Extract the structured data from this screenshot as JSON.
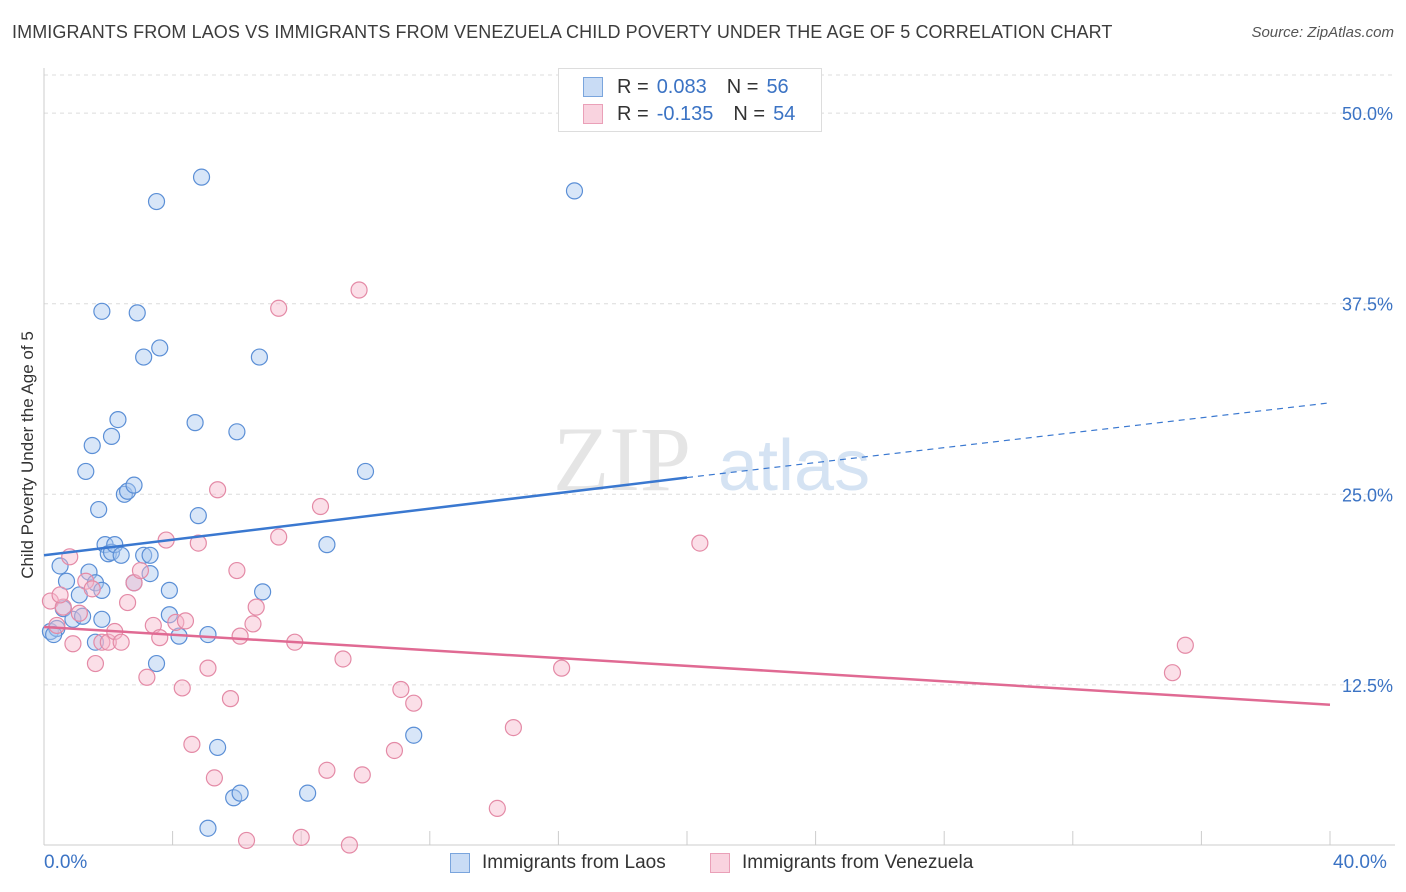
{
  "header": {
    "title": "IMMIGRANTS FROM LAOS VS IMMIGRANTS FROM VENEZUELA CHILD POVERTY UNDER THE AGE OF 5 CORRELATION CHART",
    "source": "Source: ZipAtlas.com"
  },
  "watermark": {
    "zip": "ZIP",
    "atlas": "atlas"
  },
  "legend_top": {
    "laos": {
      "r_label": "R =",
      "r_value": "0.083",
      "n_label": "N =",
      "n_value": "56"
    },
    "venezuela": {
      "r_label": "R =",
      "r_value": "-0.135",
      "n_label": "N =",
      "n_value": "54"
    }
  },
  "colors": {
    "laos_fill": "#a8c8f0",
    "laos_stroke": "#5b8fd6",
    "laos_line": "#3a78d0",
    "venezuela_fill": "#f6b8cb",
    "venezuela_stroke": "#e48aa6",
    "venezuela_line": "#e06a93",
    "tick_label": "#3b73c4",
    "grid": "#dcdcdc"
  },
  "chart_data": {
    "type": "scatter",
    "title": "IMMIGRANTS FROM LAOS VS IMMIGRANTS FROM VENEZUELA CHILD POVERTY UNDER THE AGE OF 5 CORRELATION CHART",
    "xlabel": "",
    "ylabel": "Child Poverty Under the Age of 5",
    "xlim": [
      0,
      40
    ],
    "ylim": [
      2.0,
      52.5
    ],
    "x_tick_labels": {
      "min": "0.0%",
      "max": "40.0%"
    },
    "y_ticks": [
      {
        "value": 12.5,
        "label": "12.5%"
      },
      {
        "value": 25.0,
        "label": "25.0%"
      },
      {
        "value": 37.5,
        "label": "37.5%"
      },
      {
        "value": 50.0,
        "label": "50.0%"
      }
    ],
    "grid": true,
    "legend_position": "bottom-center",
    "series": [
      {
        "name": "Immigrants from Laos",
        "color": "#a8c8f0",
        "points": [
          [
            0.2,
            16.0
          ],
          [
            0.4,
            16.2
          ],
          [
            0.5,
            20.3
          ],
          [
            0.7,
            19.3
          ],
          [
            0.6,
            17.5
          ],
          [
            0.9,
            16.8
          ],
          [
            1.1,
            18.4
          ],
          [
            1.2,
            17.0
          ],
          [
            1.3,
            26.5
          ],
          [
            1.4,
            19.9
          ],
          [
            1.5,
            28.2
          ],
          [
            1.6,
            19.2
          ],
          [
            1.7,
            24.0
          ],
          [
            1.6,
            15.3
          ],
          [
            1.8,
            37.0
          ],
          [
            1.8,
            16.8
          ],
          [
            1.8,
            18.7
          ],
          [
            1.9,
            21.7
          ],
          [
            2.0,
            21.1
          ],
          [
            2.1,
            21.2
          ],
          [
            2.1,
            28.8
          ],
          [
            2.2,
            21.7
          ],
          [
            2.3,
            29.9
          ],
          [
            2.4,
            21.0
          ],
          [
            2.5,
            25.0
          ],
          [
            2.6,
            25.2
          ],
          [
            2.8,
            25.6
          ],
          [
            2.8,
            19.2
          ],
          [
            2.9,
            36.9
          ],
          [
            3.1,
            21.0
          ],
          [
            3.1,
            34.0
          ],
          [
            3.3,
            21.0
          ],
          [
            3.3,
            19.8
          ],
          [
            3.5,
            44.2
          ],
          [
            3.5,
            13.9
          ],
          [
            3.6,
            34.6
          ],
          [
            3.9,
            17.1
          ],
          [
            3.9,
            18.7
          ],
          [
            4.2,
            15.7
          ],
          [
            4.7,
            29.7
          ],
          [
            4.8,
            23.6
          ],
          [
            4.9,
            45.8
          ],
          [
            5.1,
            15.8
          ],
          [
            5.4,
            8.4
          ],
          [
            6.0,
            29.1
          ],
          [
            5.9,
            5.1
          ],
          [
            6.1,
            5.4
          ],
          [
            6.7,
            34.0
          ],
          [
            6.8,
            18.6
          ],
          [
            8.2,
            5.4
          ],
          [
            8.8,
            21.7
          ],
          [
            10.0,
            26.5
          ],
          [
            11.5,
            9.2
          ],
          [
            16.5,
            44.9
          ],
          [
            5.1,
            3.1
          ],
          [
            0.3,
            15.8
          ]
        ],
        "trend": {
          "x": [
            0,
            20,
            40
          ],
          "y": [
            21.0,
            26.1,
            31.0
          ],
          "solid_until_x": 20
        }
      },
      {
        "name": "Immigrants from Venezuela",
        "color": "#f6b8cb",
        "points": [
          [
            0.2,
            18.0
          ],
          [
            0.4,
            16.4
          ],
          [
            0.6,
            17.6
          ],
          [
            0.8,
            20.9
          ],
          [
            0.9,
            15.2
          ],
          [
            1.1,
            17.2
          ],
          [
            1.3,
            19.3
          ],
          [
            1.5,
            18.8
          ],
          [
            1.6,
            13.9
          ],
          [
            1.8,
            15.3
          ],
          [
            2.0,
            15.3
          ],
          [
            2.2,
            16.0
          ],
          [
            2.4,
            15.3
          ],
          [
            2.6,
            17.9
          ],
          [
            2.8,
            19.2
          ],
          [
            3.0,
            20.0
          ],
          [
            3.2,
            13.0
          ],
          [
            3.4,
            16.4
          ],
          [
            3.6,
            15.6
          ],
          [
            3.8,
            22.0
          ],
          [
            4.1,
            16.6
          ],
          [
            4.3,
            12.3
          ],
          [
            4.4,
            16.7
          ],
          [
            4.6,
            8.6
          ],
          [
            4.8,
            21.8
          ],
          [
            5.1,
            13.6
          ],
          [
            5.3,
            6.4
          ],
          [
            5.4,
            25.3
          ],
          [
            5.8,
            11.6
          ],
          [
            6.0,
            20.0
          ],
          [
            6.1,
            15.7
          ],
          [
            6.3,
            2.3
          ],
          [
            6.5,
            16.5
          ],
          [
            6.6,
            17.6
          ],
          [
            7.3,
            22.2
          ],
          [
            7.3,
            37.2
          ],
          [
            7.8,
            15.3
          ],
          [
            8.0,
            2.5
          ],
          [
            8.6,
            24.2
          ],
          [
            8.8,
            6.9
          ],
          [
            9.3,
            14.2
          ],
          [
            9.5,
            2.0
          ],
          [
            9.8,
            38.4
          ],
          [
            9.9,
            6.6
          ],
          [
            10.9,
            8.2
          ],
          [
            11.1,
            12.2
          ],
          [
            11.5,
            11.3
          ],
          [
            14.1,
            4.4
          ],
          [
            14.6,
            9.7
          ],
          [
            16.1,
            13.6
          ],
          [
            20.4,
            21.8
          ],
          [
            35.1,
            13.3
          ],
          [
            35.5,
            15.1
          ],
          [
            0.5,
            18.4
          ]
        ],
        "trend": {
          "x": [
            0,
            40
          ],
          "y": [
            16.3,
            11.2
          ]
        }
      }
    ]
  },
  "bottom_legend": {
    "laos": "Immigrants from Laos",
    "venezuela": "Immigrants from Venezuela"
  }
}
